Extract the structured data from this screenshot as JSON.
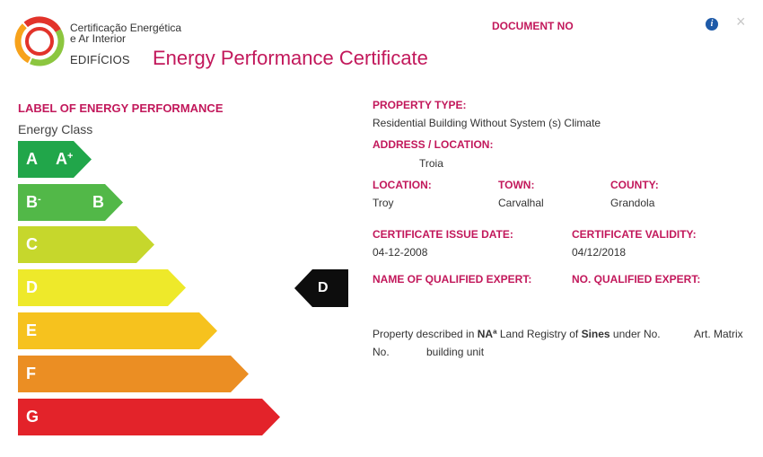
{
  "header": {
    "brand_line1": "Certificação Energética",
    "brand_line2": "e Ar Interior",
    "brand_sub": "EDIFÍCIOS",
    "title": "Energy Performance Certificate",
    "document_no_label": "DOCUMENT NO",
    "info_icon": "info-icon",
    "close_icon": "close-icon",
    "close_glyph": "×",
    "info_glyph": "i"
  },
  "label_section": {
    "title": "LABEL OF ENERGY PERFORMANCE",
    "energy_class_label": "Energy Class",
    "classes": [
      {
        "primary": "A",
        "secondary": "A",
        "secondary_sup": "+",
        "color": "#21a64a"
      },
      {
        "primary": "B",
        "primary_sup": "-",
        "secondary": "B",
        "color": "#52b848"
      },
      {
        "primary": "C",
        "color": "#c6d72c"
      },
      {
        "primary": "D",
        "color": "#eee92a"
      },
      {
        "primary": "E",
        "color": "#f6c21e"
      },
      {
        "primary": "F",
        "color": "#eb8e23"
      },
      {
        "primary": "G",
        "color": "#e3232a"
      }
    ],
    "current_class": "D"
  },
  "property": {
    "type_label": "PROPERTY TYPE:",
    "type_value": "Residential Building Without System (s) Climate",
    "address_label": "ADDRESS / LOCATION:",
    "address_value": "Troia",
    "location_label": "LOCATION:",
    "location_value": "Troy",
    "town_label": "TOWN:",
    "town_value": "Carvalhal",
    "county_label": "COUNTY:",
    "county_value": "Grandola",
    "issue_date_label": "CERTIFICATE ISSUE DATE:",
    "issue_date_value": "04-12-2008",
    "validity_label": "CERTIFICATE VALIDITY:",
    "validity_value": "04/12/2018",
    "expert_name_label": "NAME OF QUALIFIED EXPERT:",
    "expert_no_label": "NO. QUALIFIED EXPERT:"
  },
  "description": {
    "part1": "Property described in ",
    "na": "NAª",
    "part2": " Land Registry of ",
    "sines": "Sines",
    "part3": " under No.",
    "part4": "Art. Matrix",
    "part5": "No.",
    "part6": "building unit"
  }
}
